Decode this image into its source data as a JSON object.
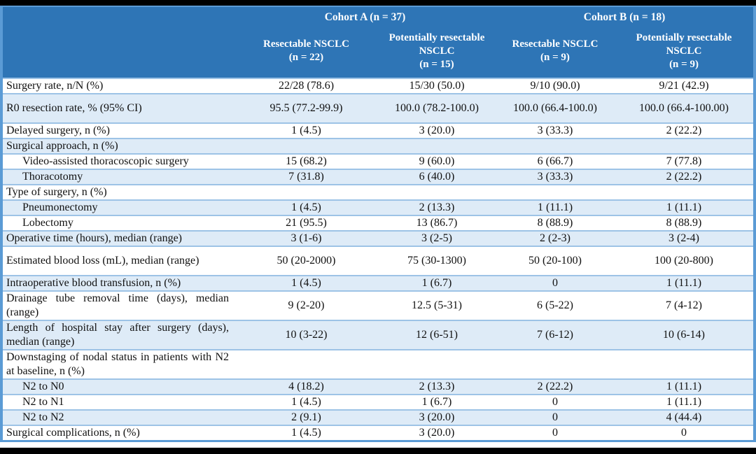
{
  "table": {
    "cohort_groups": [
      {
        "label": "Cohort A (n = 37)"
      },
      {
        "label": "Cohort B (n = 18)"
      }
    ],
    "column_headers": [
      {
        "title": "Resectable NSCLC",
        "n": "(n = 22)"
      },
      {
        "title": "Potentially resectable NSCLC",
        "n": "(n = 15)"
      },
      {
        "title": "Resectable NSCLC",
        "n": "(n = 9)"
      },
      {
        "title": "Potentially resectable NSCLC",
        "n": "(n = 9)"
      }
    ],
    "rows": [
      {
        "label": "Surgery rate, n/N (%)",
        "indent": false,
        "tall": false,
        "values": [
          "22/28 (78.6)",
          "15/30 (50.0)",
          "9/10 (90.0)",
          "9/21 (42.9)"
        ]
      },
      {
        "label": "R0 resection rate, % (95% CI)",
        "indent": false,
        "tall": true,
        "values": [
          "95.5 (77.2-99.9)",
          "100.0 (78.2-100.0)",
          "100.0 (66.4-100.0)",
          "100.0 (66.4-100.00)"
        ]
      },
      {
        "label": "Delayed surgery, n (%)",
        "indent": false,
        "tall": false,
        "values": [
          "1 (4.5)",
          "3 (20.0)",
          "3 (33.3)",
          "2 (22.2)"
        ]
      },
      {
        "label": "Surgical approach, n (%)",
        "indent": false,
        "tall": false,
        "values": [
          "",
          "",
          "",
          ""
        ]
      },
      {
        "label": "Video-assisted thoracoscopic surgery",
        "indent": true,
        "tall": false,
        "values": [
          "15 (68.2)",
          "9 (60.0)",
          "6 (66.7)",
          "7 (77.8)"
        ]
      },
      {
        "label": "Thoracotomy",
        "indent": true,
        "tall": false,
        "values": [
          "7 (31.8)",
          "6 (40.0)",
          "3 (33.3)",
          "2 (22.2)"
        ]
      },
      {
        "label": "Type of surgery, n (%)",
        "indent": false,
        "tall": false,
        "values": [
          "",
          "",
          "",
          ""
        ]
      },
      {
        "label": "Pneumonectomy",
        "indent": true,
        "tall": false,
        "values": [
          "1 (4.5)",
          "2 (13.3)",
          "1 (11.1)",
          "1 (11.1)"
        ]
      },
      {
        "label": "Lobectomy",
        "indent": true,
        "tall": false,
        "values": [
          "21 (95.5)",
          "13 (86.7)",
          "8 (88.9)",
          "8 (88.9)"
        ]
      },
      {
        "label": "Operative time (hours), median (range)",
        "indent": false,
        "tall": false,
        "values": [
          "3 (1-6)",
          "3 (2-5)",
          "2 (2-3)",
          "3 (2-4)"
        ]
      },
      {
        "label": "Estimated blood loss (mL), median (range)",
        "indent": false,
        "tall": true,
        "values": [
          "50 (20-2000)",
          "75 (30-1300)",
          "50 (20-100)",
          "100 (20-800)"
        ]
      },
      {
        "label": "Intraoperative blood transfusion, n (%)",
        "indent": false,
        "tall": false,
        "values": [
          "1 (4.5)",
          "1 (6.7)",
          "0",
          "1 (11.1)"
        ]
      },
      {
        "label": "Drainage tube removal time (days), median (range)",
        "indent": false,
        "tall": true,
        "values": [
          "9 (2-20)",
          "12.5 (5-31)",
          "6 (5-22)",
          "7 (4-12)"
        ]
      },
      {
        "label": "Length of hospital stay after surgery (days), median (range)",
        "indent": false,
        "tall": true,
        "values": [
          "10 (3-22)",
          "12 (6-51)",
          "7 (6-12)",
          "10 (6-14)"
        ]
      },
      {
        "label": "Downstaging of nodal status in patients with N2 at baseline, n (%)",
        "indent": false,
        "tall": true,
        "values": [
          "",
          "",
          "",
          ""
        ]
      },
      {
        "label": "N2 to N0",
        "indent": true,
        "tall": false,
        "values": [
          "4 (18.2)",
          "2 (13.3)",
          "2 (22.2)",
          "1 (11.1)"
        ]
      },
      {
        "label": "N2 to N1",
        "indent": true,
        "tall": false,
        "values": [
          "1 (4.5)",
          "1 (6.7)",
          "0",
          "1 (11.1)"
        ]
      },
      {
        "label": "N2 to N2",
        "indent": true,
        "tall": false,
        "values": [
          "2 (9.1)",
          "3 (20.0)",
          "0",
          "4 (44.4)"
        ]
      },
      {
        "label": "Surgical complications, n (%)",
        "indent": false,
        "tall": false,
        "values": [
          "1 (4.5)",
          "3 (20.0)",
          "0",
          "0"
        ]
      }
    ]
  },
  "colors": {
    "header_bg": "#2E75B6",
    "header_text": "#FFFFFF",
    "row_stripe": "#DEEBF7",
    "row_border": "#9DC3E6",
    "outer_border": "#5B9BD5",
    "frame": "#000000"
  }
}
